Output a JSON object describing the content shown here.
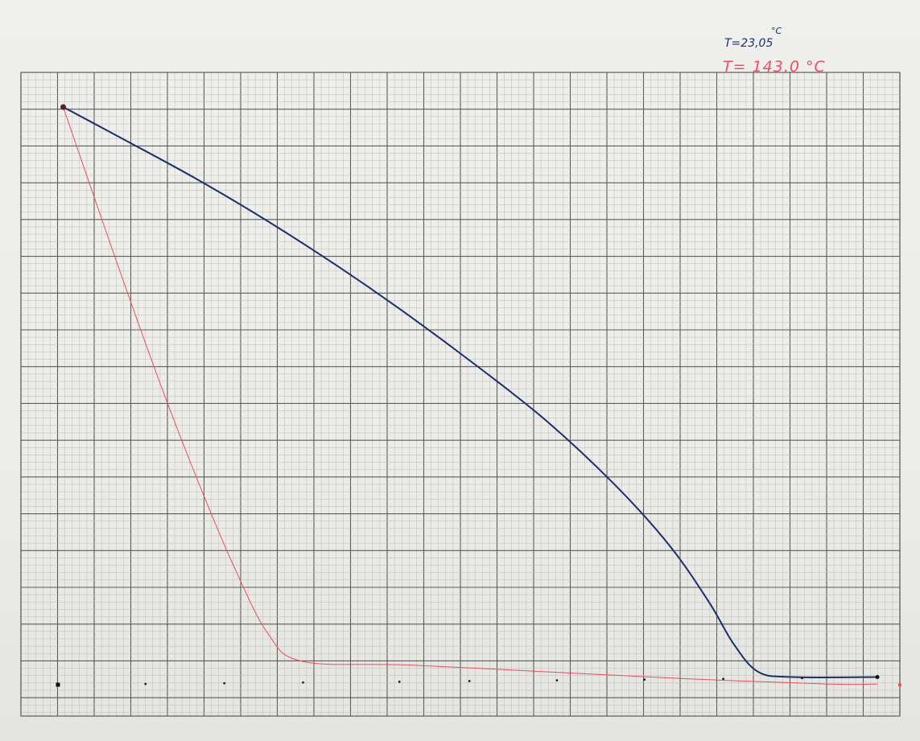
{
  "annotations": {
    "blue_temperature": "T=23,05",
    "blue_unit": "°C",
    "red_temperature": "T= 143,0 °C"
  },
  "colors": {
    "paper": "#ecece9",
    "grid_fine": "#b9bcb6",
    "grid_major": "#5a5d58",
    "blue_curve": "#1d2f6b",
    "red_curve": "#e8505a",
    "marker": "#111111"
  },
  "chart_data": {
    "type": "line",
    "title": "",
    "xlabel": "",
    "ylabel": "",
    "grid": true,
    "xlim": [
      0,
      24
    ],
    "ylim": [
      0,
      17.5
    ],
    "grid_divisions": {
      "x_major": 24,
      "y_major": 17.5,
      "minor_per_major": 5
    },
    "series": [
      {
        "color": "#1d2f6b",
        "points": [
          [
            0.15,
            16.6
          ],
          [
            2,
            15.6
          ],
          [
            4,
            14.5
          ],
          [
            6,
            13.3
          ],
          [
            8,
            12.0
          ],
          [
            10,
            10.6
          ],
          [
            12,
            9.1
          ],
          [
            14,
            7.5
          ],
          [
            16,
            5.6
          ],
          [
            17.5,
            3.9
          ],
          [
            18.6,
            2.3
          ],
          [
            19.3,
            1.1
          ],
          [
            20,
            0.3
          ],
          [
            21,
            0.15
          ],
          [
            23.4,
            0.15
          ]
        ]
      },
      {
        "color": "#e8505a",
        "points": [
          [
            0.15,
            16.6
          ],
          [
            1,
            14.1
          ],
          [
            2,
            11.2
          ],
          [
            3,
            8.4
          ],
          [
            4,
            5.8
          ],
          [
            5,
            3.4
          ],
          [
            6,
            1.4
          ],
          [
            7,
            0.6
          ],
          [
            10,
            0.5
          ],
          [
            14,
            0.3
          ],
          [
            18,
            0.1
          ],
          [
            22,
            -0.05
          ],
          [
            23.4,
            -0.05
          ]
        ]
      }
    ],
    "baseline_markers_x": [
      0,
      2.5,
      4.75,
      7,
      9.75,
      11.75,
      14.25,
      16.75,
      19,
      21.25,
      23.4
    ]
  }
}
